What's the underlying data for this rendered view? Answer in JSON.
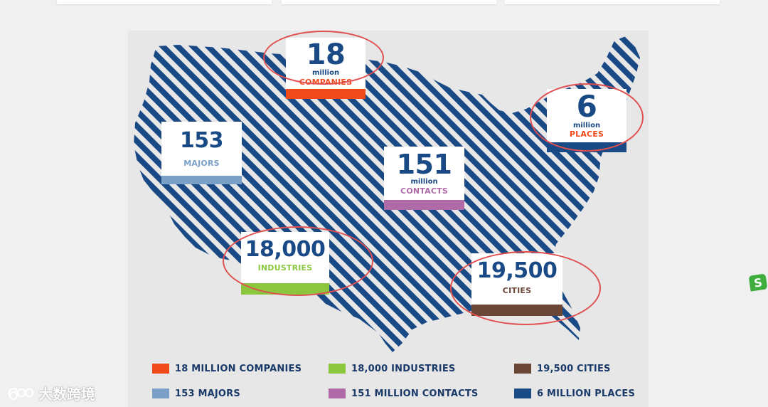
{
  "colors": {
    "map_stripe": "#1a4a86",
    "companies": "#f04a1a",
    "majors": "#7aa0c8",
    "contacts": "#b06aa8",
    "industries": "#8cc63f",
    "cities": "#6b4536",
    "places": "#1a4a86",
    "highlight_circle": "#e05050"
  },
  "stats": {
    "companies": {
      "number": "18",
      "unit": "million",
      "label": "COMPANIES"
    },
    "majors": {
      "number": "153",
      "label": "MAJORS"
    },
    "contacts": {
      "number": "151",
      "unit": "million",
      "label": "CONTACTS"
    },
    "places": {
      "number": "6",
      "unit": "million",
      "label": "PLACES"
    },
    "industries": {
      "number": "18,000",
      "label": "INDUSTRIES"
    },
    "cities": {
      "number": "19,500",
      "label": "CITIES"
    }
  },
  "legend": [
    {
      "label": "18 MILLION COMPANIES",
      "color": "#f04a1a"
    },
    {
      "label": "18,000 INDUSTRIES",
      "color": "#8cc63f"
    },
    {
      "label": "19,500 CITIES",
      "color": "#6b4536"
    },
    {
      "label": "153 MAJORS",
      "color": "#7aa0c8"
    },
    {
      "label": "151 MILLION CONTACTS",
      "color": "#b06aa8"
    },
    {
      "label": "6 MILLION PLACES",
      "color": "#1a4a86"
    }
  ],
  "watermark": {
    "text": "大数跨境",
    "icon": "weibo-logo-icon"
  },
  "floating_icon": {
    "text": "S",
    "icon": "sogou-input-icon"
  }
}
